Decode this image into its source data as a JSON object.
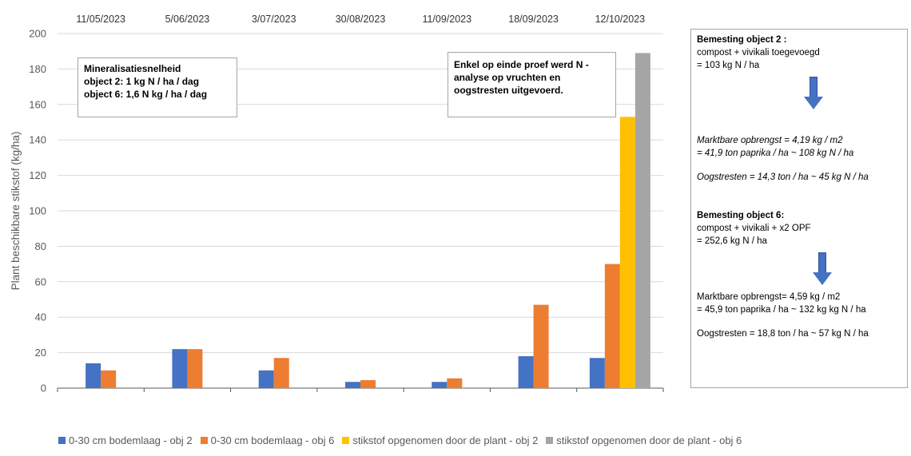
{
  "chart_data": {
    "type": "bar",
    "title": "",
    "xlabel": "",
    "ylabel": "Plant beschikbare stikstof (kg/ha)",
    "ylim": [
      0,
      200
    ],
    "yticks": [
      0,
      20,
      40,
      60,
      80,
      100,
      120,
      140,
      160,
      180,
      200
    ],
    "grid": true,
    "categories": [
      "11/05/2023",
      "5/06/2023",
      "3/07/2023",
      "30/08/2023",
      "11/09/2023",
      "18/09/2023",
      "12/10/2023"
    ],
    "series": [
      {
        "name": "0-30 cm bodemlaag -  obj 2",
        "color": "#4472c4",
        "values": [
          14,
          22,
          10,
          3.5,
          3.5,
          18,
          17
        ]
      },
      {
        "name": "0-30 cm bodemlaag - obj 6",
        "color": "#ed7d31",
        "values": [
          10,
          22,
          17,
          4.5,
          5.5,
          47,
          70
        ]
      },
      {
        "name": "stikstof opgenomen door de plant - obj 2",
        "color": "#ffc000",
        "values": [
          null,
          null,
          null,
          null,
          null,
          null,
          153
        ]
      },
      {
        "name": "stikstof opgenomen door de plant - obj 6",
        "color": "#a5a5a5",
        "values": [
          null,
          null,
          null,
          null,
          null,
          null,
          189
        ]
      }
    ],
    "legend_position": "bottom",
    "annotations": {
      "mineralisatie": {
        "title": "Mineralisatiesnelheid",
        "line1": "object 2: 1 kg N / ha / dag",
        "line2": "object 6: 1,6 N kg / ha / dag"
      },
      "enkel": {
        "line1": "Enkel op einde proef werd N -",
        "line2": "analyse op vruchten en",
        "line3": "oogstresten  uitgevoerd."
      }
    }
  },
  "sidebar": {
    "obj2": {
      "title": "Bemesting object 2 :",
      "line1": "compost + vivikali toegevoegd",
      "line2": "= 103  kg N / ha",
      "yield1": "Marktbare opbrengst = 4,19  kg / m2",
      "yield2": " =  41,9 ton paprika / ha  ~ 108 kg N / ha",
      "residue": "Oogstresten = 14,3 ton / ha ~ 45 kg N / ha"
    },
    "obj6": {
      "title": "Bemesting object 6:",
      "line1": " compost + vivikali +  x2 OPF",
      "line2": "= 252,6 kg N / ha",
      "yield1": "Marktbare opbrengst= 4,59 kg / m2",
      "yield2": "  =  45,9 ton paprika / ha ~ 132 kg kg N / ha",
      "residue": "Oogstresten = 18,8 ton / ha ~ 57 kg N / ha"
    },
    "arrow_icon": "down-arrow-icon"
  }
}
